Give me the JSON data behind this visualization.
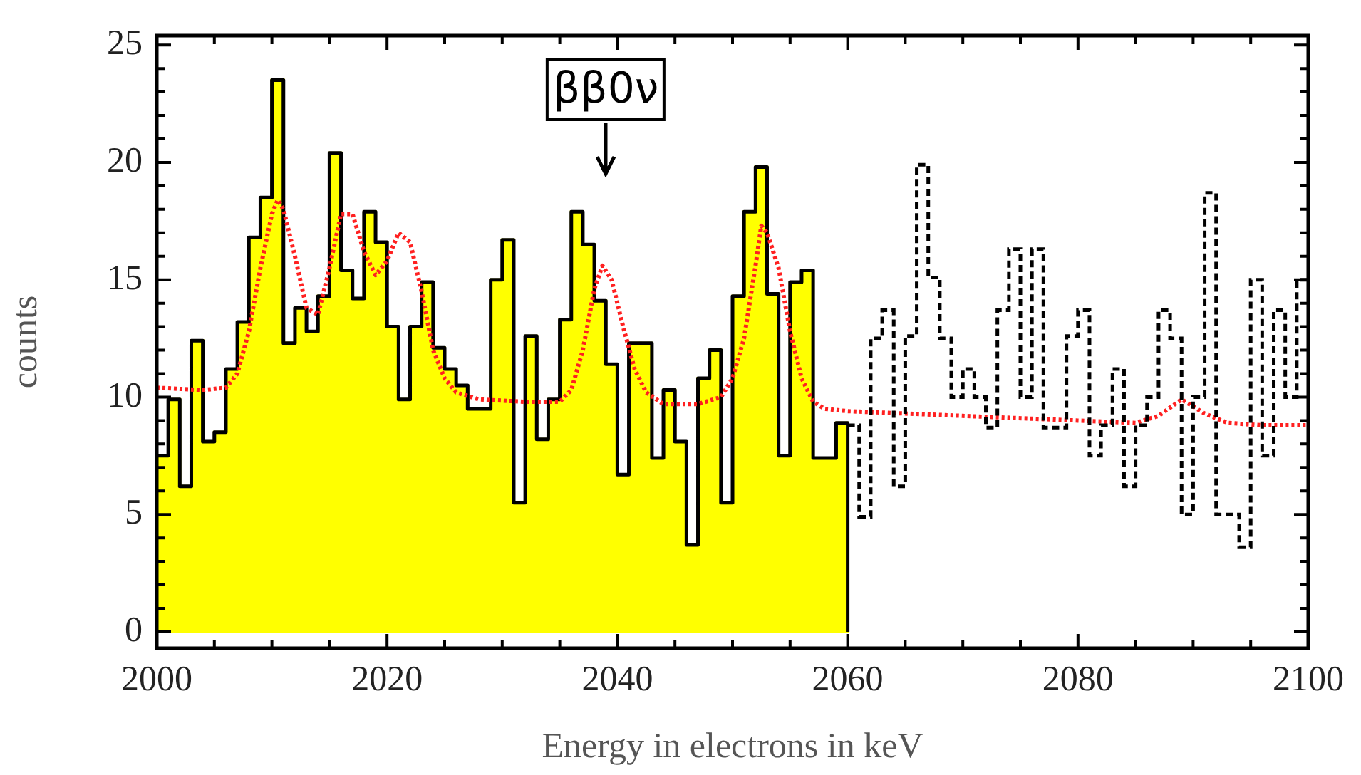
{
  "chart_data": {
    "type": "histogram",
    "xlabel": "Energy in electrons in keV",
    "ylabel": "counts",
    "series": [
      {
        "color": "#ffff00",
        "bins": [
          2000,
          2001,
          2002,
          2003,
          2004,
          2005,
          2006,
          2007,
          2008,
          2009,
          2010,
          2011,
          2012,
          2013,
          2014,
          2015,
          2016,
          2017,
          2018,
          2019,
          2020,
          2021,
          2022,
          2023,
          2024,
          2025,
          2026,
          2027,
          2028,
          2029,
          2030,
          2031,
          2032,
          2033,
          2034,
          2035,
          2036,
          2037,
          2038,
          2039,
          2040,
          2041,
          2042,
          2043,
          2044,
          2045,
          2046,
          2047,
          2048,
          2049,
          2050,
          2051,
          2052,
          2053,
          2054,
          2055,
          2056,
          2057,
          2058,
          2059,
          2060
        ],
        "values": [
          7.5,
          9.9,
          6.2,
          12.4,
          8.1,
          8.5,
          11.2,
          13.2,
          16.8,
          18.5,
          23.5,
          12.3,
          13.8,
          12.8,
          14.3,
          20.4,
          15.4,
          14.2,
          17.9,
          16.6,
          13.0,
          9.9,
          13.0,
          14.9,
          12.1,
          11.2,
          10.5,
          9.5,
          9.5,
          15.0,
          16.7,
          5.5,
          12.6,
          8.2,
          9.9,
          13.3,
          17.9,
          16.5,
          14.1,
          11.4,
          6.7,
          12.3,
          12.3,
          7.4,
          10.3,
          8.1,
          3.7,
          10.8,
          12.0,
          5.5,
          14.3,
          17.9,
          19.8,
          14.4,
          7.5,
          14.9,
          15.4,
          7.4,
          7.4,
          8.9
        ]
      },
      {
        "type": "step",
        "color": "#000000",
        "x": [
          2000,
          2001,
          2002,
          2003,
          2004,
          2005,
          2006,
          2007,
          2008,
          2009,
          2010,
          2011,
          2012,
          2013,
          2014,
          2015,
          2016,
          2017,
          2018,
          2019,
          2020,
          2021,
          2022,
          2023,
          2024,
          2025,
          2026,
          2027,
          2028,
          2029,
          2030,
          2031,
          2032,
          2033,
          2034,
          2035,
          2036,
          2037,
          2038,
          2039,
          2040,
          2041,
          2042,
          2043,
          2044,
          2045,
          2046,
          2047,
          2048,
          2049,
          2050,
          2051,
          2052,
          2053,
          2054,
          2055,
          2056,
          2057,
          2058,
          2059,
          2060,
          2060
        ],
        "values": [
          7.5,
          9.9,
          6.2,
          12.4,
          8.1,
          8.5,
          11.2,
          13.2,
          16.8,
          18.5,
          23.5,
          12.3,
          13.8,
          12.8,
          14.3,
          20.4,
          15.4,
          14.2,
          17.9,
          16.6,
          13.0,
          9.9,
          13.0,
          14.9,
          12.1,
          11.2,
          10.5,
          9.5,
          9.5,
          15.0,
          16.7,
          5.5,
          12.6,
          8.2,
          9.9,
          13.3,
          17.9,
          16.5,
          14.1,
          11.4,
          6.7,
          12.3,
          12.3,
          7.4,
          10.3,
          8.1,
          3.7,
          10.8,
          12.0,
          5.5,
          14.3,
          17.9,
          19.8,
          14.4,
          7.5,
          14.9,
          15.4,
          7.4,
          7.4,
          8.9,
          8.9,
          0
        ]
      },
      {
        "color": "#000000",
        "line_style": "dashed",
        "bins": [
          2060,
          2061,
          2062,
          2063,
          2064,
          2065,
          2066,
          2067,
          2068,
          2069,
          2070,
          2071,
          2072,
          2073,
          2074,
          2075,
          2076,
          2077,
          2078,
          2079,
          2080,
          2081,
          2082,
          2083,
          2084,
          2085,
          2086,
          2087,
          2088,
          2089,
          2090,
          2091,
          2092,
          2093,
          2094,
          2095,
          2096,
          2097,
          2098,
          2099,
          2100
        ],
        "values": [
          8.8,
          4.9,
          12.5,
          13.7,
          6.2,
          12.6,
          19.9,
          15.1,
          12.5,
          10.0,
          11.2,
          10.0,
          8.7,
          13.7,
          16.3,
          10.0,
          16.3,
          8.7,
          8.7,
          12.6,
          13.7,
          7.5,
          8.8,
          11.2,
          6.2,
          8.8,
          10.0,
          13.7,
          12.5,
          5.0,
          10.0,
          18.7,
          5.0,
          5.0,
          3.6,
          15.0,
          7.5,
          13.7,
          10.0,
          15.0
        ]
      },
      {
        "type": "line",
        "color": "#ff2020",
        "line_style": "dotted",
        "x": [
          2000,
          2004,
          2006,
          2007,
          2008,
          2009,
          2010,
          2010.5,
          2011,
          2012,
          2013,
          2014,
          2015,
          2016,
          2017,
          2018,
          2019,
          2020,
          2021,
          2022,
          2023,
          2024,
          2025,
          2026,
          2028,
          2032,
          2035,
          2036,
          2037,
          2038,
          2038.7,
          2039.5,
          2040.5,
          2041.5,
          2042.5,
          2044,
          2047,
          2049,
          2050,
          2051,
          2052,
          2052.5,
          2053,
          2054,
          2055,
          2056,
          2057,
          2058,
          2060,
          2070,
          2080,
          2085,
          2087,
          2089,
          2091,
          2093,
          2096,
          2100
        ],
        "values": [
          10.4,
          10.3,
          10.4,
          11,
          12.8,
          15.5,
          17.8,
          18.4,
          18,
          16,
          13.8,
          13.5,
          15.5,
          17.8,
          17.8,
          16.2,
          15.2,
          15.8,
          17,
          16.6,
          14.5,
          12,
          10.8,
          10.2,
          9.9,
          9.8,
          9.8,
          10.3,
          12,
          14.6,
          15.6,
          15,
          13,
          11.2,
          10.2,
          9.7,
          9.7,
          10,
          10.8,
          12.5,
          15.6,
          17.3,
          17,
          15.5,
          12.8,
          10.8,
          9.8,
          9.5,
          9.4,
          9.2,
          9.0,
          8.9,
          9.2,
          9.9,
          9.3,
          8.9,
          8.8,
          8.8
        ]
      }
    ],
    "xlim": [
      2000,
      2100
    ],
    "xticks": [
      2000,
      {
        "value": 2005,
        "label": null
      },
      {
        "value": 2010,
        "label": null
      },
      {
        "value": 2015,
        "label": null
      },
      2020,
      {
        "value": 2025,
        "label": null
      },
      {
        "value": 2030,
        "label": null
      },
      {
        "value": 2035,
        "label": null
      },
      2040,
      {
        "value": 2045,
        "label": null
      },
      {
        "value": 2050,
        "label": null
      },
      {
        "value": 2055,
        "label": null
      },
      2060,
      {
        "value": 2065,
        "label": null
      },
      {
        "value": 2070,
        "label": null
      },
      {
        "value": 2075,
        "label": null
      },
      2080,
      {
        "value": 2085,
        "label": null
      },
      {
        "value": 2090,
        "label": null
      },
      {
        "value": 2095,
        "label": null
      },
      2100
    ],
    "ylim": [
      -0.7,
      25.4
    ],
    "yticks": [
      0,
      {
        "value": 1,
        "label": null
      },
      {
        "value": 2,
        "label": null
      },
      {
        "value": 3,
        "label": null
      },
      {
        "value": 4,
        "label": null
      },
      5,
      {
        "value": 6,
        "label": null
      },
      {
        "value": 7,
        "label": null
      },
      {
        "value": 8,
        "label": null
      },
      {
        "value": 9,
        "label": null
      },
      10,
      {
        "value": 11,
        "label": null
      },
      {
        "value": 12,
        "label": null
      },
      {
        "value": 13,
        "label": null
      },
      {
        "value": 14,
        "label": null
      },
      15,
      {
        "value": 16,
        "label": null
      },
      {
        "value": 17,
        "label": null
      },
      {
        "value": 18,
        "label": null
      },
      {
        "value": 19,
        "label": null
      },
      20,
      {
        "value": 21,
        "label": null
      },
      {
        "value": 22,
        "label": null
      },
      {
        "value": 23,
        "label": null
      },
      {
        "value": 24,
        "label": null
      },
      25
    ],
    "annotations": [
      "ββ0ν"
    ]
  }
}
